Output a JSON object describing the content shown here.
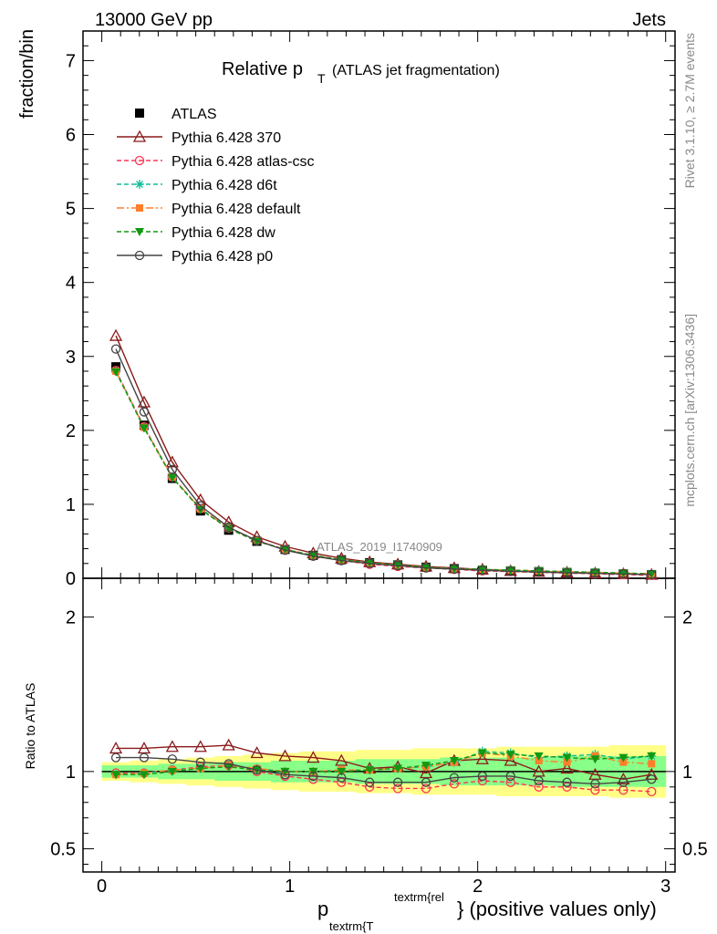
{
  "header": {
    "left": "13000 GeV pp",
    "right": "Jets"
  },
  "plot_title": {
    "main": "Relative p",
    "sub": "T",
    "paren": "(ATLAS jet fragmentation)"
  },
  "side_labels": {
    "rivet": "Rivet 3.1.10, ≥ 2.7M events",
    "mcplots": "mcplots.cern.ch [arXiv:1306.3436]"
  },
  "watermark": "ATLAS_2019_I1740909",
  "colors": {
    "atlas": "#000000",
    "p370": "#8b1a1a",
    "atlascsc": "#ff3355",
    "d6t": "#11bb99",
    "default": "#ff7f2a",
    "dw": "#119911",
    "p0": "#444444",
    "band_inner": "#88ff88",
    "band_outer": "#ffff88"
  },
  "chart_data": [
    {
      "type": "line",
      "title": "Relative pT (ATLAS jet fragmentation)",
      "ylabel": "fraction/bin",
      "xlim": [
        -0.1,
        3.05
      ],
      "ylim": [
        0,
        7.4
      ],
      "yticks": [
        "0",
        "1",
        "2",
        "3",
        "4",
        "5",
        "6",
        "7"
      ],
      "x": [
        0.075,
        0.225,
        0.375,
        0.525,
        0.675,
        0.825,
        0.975,
        1.125,
        1.275,
        1.425,
        1.575,
        1.725,
        1.875,
        2.025,
        2.175,
        2.325,
        2.475,
        2.625,
        2.775,
        2.925
      ],
      "series": [
        {
          "name": "ATLAS",
          "style": "data",
          "values": [
            2.86,
            2.07,
            1.35,
            0.91,
            0.65,
            0.5,
            0.39,
            0.31,
            0.25,
            0.21,
            0.18,
            0.15,
            0.13,
            0.11,
            0.1,
            0.09,
            0.08,
            0.07,
            0.06,
            0.05
          ]
        },
        {
          "name": "Pythia 6.428 370",
          "style": "solid",
          "marker": "triangle-open",
          "color": "#8b1a1a",
          "values": [
            3.28,
            2.38,
            1.57,
            1.06,
            0.76,
            0.56,
            0.43,
            0.34,
            0.27,
            0.22,
            0.19,
            0.16,
            0.14,
            0.12,
            0.1,
            0.09,
            0.08,
            0.07,
            0.06,
            0.05
          ]
        },
        {
          "name": "Pythia 6.428 atlas-csc",
          "style": "dashed",
          "marker": "circle-open",
          "color": "#ff3355",
          "values": [
            2.81,
            2.05,
            1.37,
            0.94,
            0.68,
            0.51,
            0.39,
            0.3,
            0.24,
            0.19,
            0.16,
            0.14,
            0.12,
            0.1,
            0.09,
            0.08,
            0.07,
            0.06,
            0.05,
            0.04
          ]
        },
        {
          "name": "Pythia 6.428 d6t",
          "style": "dashed",
          "marker": "star",
          "color": "#11bb99",
          "values": [
            2.8,
            2.04,
            1.37,
            0.94,
            0.68,
            0.51,
            0.39,
            0.31,
            0.25,
            0.21,
            0.18,
            0.15,
            0.13,
            0.12,
            0.11,
            0.1,
            0.09,
            0.08,
            0.07,
            0.06
          ]
        },
        {
          "name": "Pythia 6.428 default",
          "style": "dashdot",
          "marker": "square",
          "color": "#ff7f2a",
          "values": [
            2.8,
            2.04,
            1.37,
            0.94,
            0.68,
            0.51,
            0.39,
            0.31,
            0.25,
            0.21,
            0.18,
            0.15,
            0.13,
            0.12,
            0.11,
            0.1,
            0.09,
            0.08,
            0.07,
            0.06
          ]
        },
        {
          "name": "Pythia 6.428 dw",
          "style": "dashed",
          "marker": "triangle-down",
          "color": "#119911",
          "values": [
            2.79,
            2.03,
            1.36,
            0.93,
            0.67,
            0.5,
            0.39,
            0.31,
            0.25,
            0.21,
            0.18,
            0.15,
            0.13,
            0.12,
            0.11,
            0.1,
            0.09,
            0.08,
            0.07,
            0.06
          ]
        },
        {
          "name": "Pythia 6.428 p0",
          "style": "solid",
          "marker": "circle-open",
          "color": "#444444",
          "values": [
            3.1,
            2.25,
            1.47,
            0.98,
            0.69,
            0.51,
            0.38,
            0.3,
            0.24,
            0.2,
            0.17,
            0.14,
            0.125,
            0.108,
            0.095,
            0.084,
            0.074,
            0.066,
            0.058,
            0.05
          ]
        }
      ]
    },
    {
      "type": "line",
      "ylabel": "Ratio to ATLAS",
      "xlabel_main": "p",
      "xlabel_sub": "textrm{T",
      "xlabel_sup": "textrm{rel",
      "xlabel_tail": "} (positive values only)",
      "xlim": [
        -0.1,
        3.05
      ],
      "ylim": [
        0.35,
        2.25
      ],
      "xticks": [
        "0",
        "1",
        "2",
        "3"
      ],
      "yticks": [
        "0.5",
        "1",
        "2"
      ],
      "x": [
        0.075,
        0.225,
        0.375,
        0.525,
        0.675,
        0.825,
        0.975,
        1.125,
        1.275,
        1.425,
        1.575,
        1.725,
        1.875,
        2.025,
        2.175,
        2.325,
        2.475,
        2.625,
        2.775,
        2.925
      ],
      "band_inner_halfwidth": [
        0.04,
        0.04,
        0.05,
        0.05,
        0.06,
        0.06,
        0.07,
        0.07,
        0.07,
        0.08,
        0.08,
        0.08,
        0.09,
        0.09,
        0.09,
        0.09,
        0.1,
        0.1,
        0.1,
        0.1
      ],
      "band_outer_halfwidth": [
        0.06,
        0.07,
        0.08,
        0.09,
        0.1,
        0.11,
        0.12,
        0.13,
        0.13,
        0.14,
        0.14,
        0.15,
        0.15,
        0.15,
        0.16,
        0.16,
        0.16,
        0.16,
        0.17,
        0.17
      ],
      "series": [
        {
          "name": "Pythia 6.428 370",
          "values": [
            1.15,
            1.15,
            1.16,
            1.16,
            1.17,
            1.12,
            1.1,
            1.09,
            1.07,
            1.02,
            1.03,
            0.99,
            1.07,
            1.08,
            1.07,
            1.0,
            1.02,
            0.98,
            0.95,
            0.98
          ]
        },
        {
          "name": "Pythia 6.428 atlas-csc",
          "values": [
            0.99,
            0.99,
            1.01,
            1.03,
            1.04,
            1.0,
            0.97,
            0.95,
            0.93,
            0.9,
            0.89,
            0.89,
            0.92,
            0.94,
            0.93,
            0.9,
            0.9,
            0.88,
            0.88,
            0.87
          ]
        },
        {
          "name": "Pythia 6.428 d6t",
          "values": [
            0.98,
            0.99,
            1.01,
            1.02,
            1.04,
            1.02,
            1.0,
            1.0,
            1.01,
            1.01,
            1.02,
            1.03,
            1.06,
            1.13,
            1.12,
            1.09,
            1.1,
            1.11,
            1.08,
            1.1
          ]
        },
        {
          "name": "Pythia 6.428 default",
          "values": [
            0.98,
            0.99,
            1.01,
            1.02,
            1.04,
            1.02,
            1.0,
            1.0,
            1.01,
            1.01,
            1.02,
            1.03,
            1.06,
            1.12,
            1.1,
            1.07,
            1.06,
            1.1,
            1.06,
            1.05
          ]
        },
        {
          "name": "Pythia 6.428 dw",
          "values": [
            0.98,
            0.98,
            1.0,
            1.02,
            1.03,
            1.01,
            1.0,
            1.0,
            1.0,
            1.01,
            1.02,
            1.04,
            1.07,
            1.12,
            1.11,
            1.1,
            1.09,
            1.08,
            1.09,
            1.1
          ]
        },
        {
          "name": "Pythia 6.428 p0",
          "values": [
            1.09,
            1.09,
            1.08,
            1.06,
            1.05,
            1.01,
            0.98,
            0.97,
            0.96,
            0.93,
            0.93,
            0.93,
            0.96,
            0.97,
            0.97,
            0.94,
            0.93,
            0.92,
            0.93,
            0.95
          ]
        }
      ]
    }
  ]
}
